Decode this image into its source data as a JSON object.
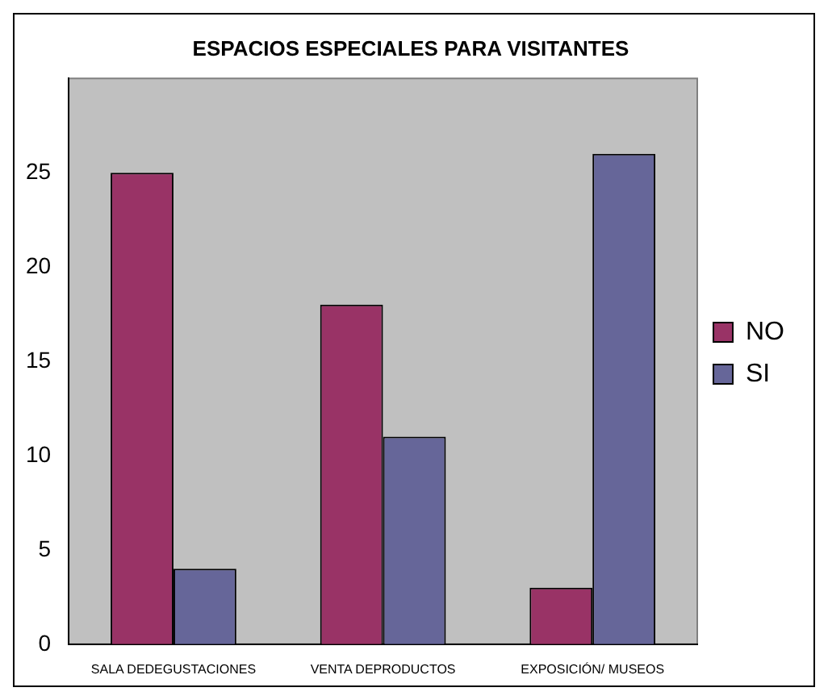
{
  "chart_data": {
    "type": "bar",
    "title": "ESPACIOS ESPECIALES PARA VISITANTES",
    "categories": [
      "SALA DEDEGUSTACIONES",
      "VENTA DEPRODUCTOS",
      "EXPOSICIÓN/ MUSEOS"
    ],
    "series": [
      {
        "name": "NO",
        "color": "#993366",
        "values": [
          25,
          18,
          3
        ]
      },
      {
        "name": "SI",
        "color": "#666699",
        "values": [
          4,
          11,
          26
        ]
      }
    ],
    "ylim": [
      0,
      30
    ],
    "yticks": [
      0,
      5,
      10,
      15,
      20,
      25
    ],
    "legend": "right"
  }
}
